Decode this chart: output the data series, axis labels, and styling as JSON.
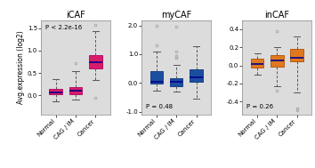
{
  "panels": [
    {
      "title": "iCAF",
      "color": "#D81B6A",
      "edge_color": "#B0005A",
      "pvalue": "P < 2.2e-16",
      "pvalue_loc": "upper left",
      "ylim": [
        -0.42,
        1.68
      ],
      "yticks": [
        0.0,
        0.5,
        1.0,
        1.5
      ],
      "ytick_labels": [
        "0.0",
        "0.5",
        "1.0",
        "1.5"
      ],
      "groups": [
        "Normal",
        "CAG / IM",
        "Cancer"
      ],
      "boxes": [
        {
          "q1": 0.02,
          "median": 0.07,
          "q3": 0.15,
          "whislo": -0.13,
          "whishi": 0.37,
          "fliers": []
        },
        {
          "q1": 0.03,
          "median": 0.1,
          "q3": 0.19,
          "whislo": -0.1,
          "whishi": 0.55,
          "fliers": [
            0.72
          ]
        },
        {
          "q1": 0.6,
          "median": 0.75,
          "q3": 0.9,
          "whislo": 0.35,
          "whishi": 1.43,
          "fliers": [
            -0.05,
            1.57
          ]
        }
      ]
    },
    {
      "title": "myCAF",
      "color": "#1A4FA0",
      "edge_color": "#0A3080",
      "pvalue": "P = 0.48",
      "pvalue_loc": "lower left",
      "ylim": [
        -1.08,
        2.18
      ],
      "yticks": [
        -1.0,
        0.0,
        1.0,
        2.0
      ],
      "ytick_labels": [
        "-1.0",
        "0.0",
        "1.0",
        "2.0"
      ],
      "groups": [
        "Normal",
        "CAG / IM",
        "Cancer"
      ],
      "boxes": [
        {
          "q1": -0.03,
          "median": 0.05,
          "q3": 0.4,
          "whislo": -0.25,
          "whishi": 1.08,
          "fliers": [
            1.32,
            1.97
          ]
        },
        {
          "q1": -0.1,
          "median": 0.05,
          "q3": 0.18,
          "whislo": -0.3,
          "whishi": 0.62,
          "fliers": [
            0.88,
            0.95,
            1.1,
            1.95
          ]
        },
        {
          "q1": 0.05,
          "median": 0.2,
          "q3": 0.48,
          "whislo": -0.55,
          "whishi": 1.28,
          "fliers": []
        }
      ]
    },
    {
      "title": "inCAF",
      "color": "#E07820",
      "edge_color": "#B05000",
      "pvalue": "P = 0.26",
      "pvalue_loc": "lower left",
      "ylim": [
        -0.54,
        0.5
      ],
      "yticks": [
        -0.4,
        -0.2,
        0.0,
        0.2,
        0.4
      ],
      "ytick_labels": [
        "-0.4",
        "-0.2",
        "0.0",
        "0.2",
        "0.4"
      ],
      "groups": [
        "Normal",
        "CAG / IM",
        "Cancer"
      ],
      "boxes": [
        {
          "q1": -0.02,
          "median": 0.02,
          "q3": 0.07,
          "whislo": -0.1,
          "whishi": 0.13,
          "fliers": []
        },
        {
          "q1": -0.01,
          "median": 0.05,
          "q3": 0.11,
          "whislo": -0.23,
          "whishi": 0.2,
          "fliers": [
            -0.28,
            0.38
          ]
        },
        {
          "q1": 0.04,
          "median": 0.08,
          "q3": 0.18,
          "whislo": -0.3,
          "whishi": 0.32,
          "fliers": [
            -0.48,
            -0.5
          ]
        }
      ]
    }
  ],
  "ylabel": "Avg.expression (log2)",
  "bg_color": "#DCDCDC",
  "median_color": "#00008B",
  "whisker_color": "#555555",
  "flier_color": "#999999",
  "tick_fontsize": 5.0,
  "label_fontsize": 5.5,
  "title_fontsize": 7.0,
  "pvalue_fontsize": 5.0
}
